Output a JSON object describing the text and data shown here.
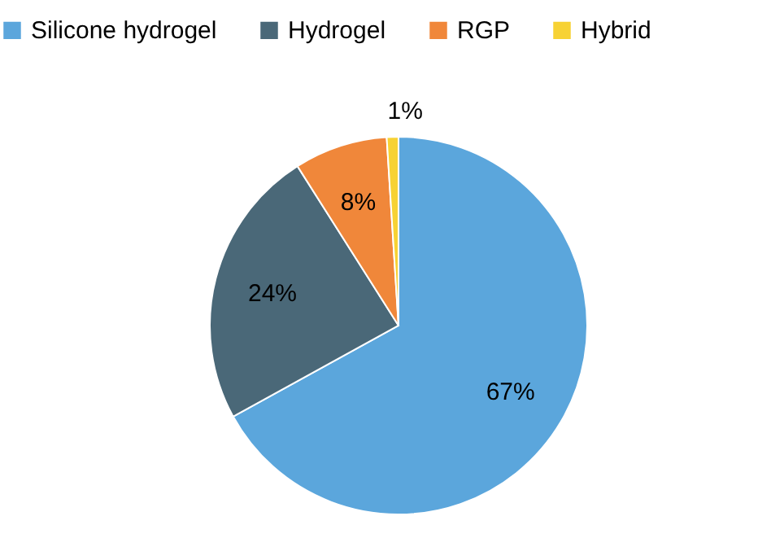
{
  "chart_data": {
    "type": "pie",
    "categories": [
      "Silicone hydrogel",
      "Hydrogel",
      "RGP",
      "Hybrid"
    ],
    "values": [
      67,
      24,
      8,
      1
    ],
    "colors": [
      "#5ba6dc",
      "#4a6878",
      "#f0873a",
      "#f7d234"
    ],
    "value_labels": [
      "67%",
      "24%",
      "8%",
      "1%"
    ],
    "legend": "top"
  }
}
